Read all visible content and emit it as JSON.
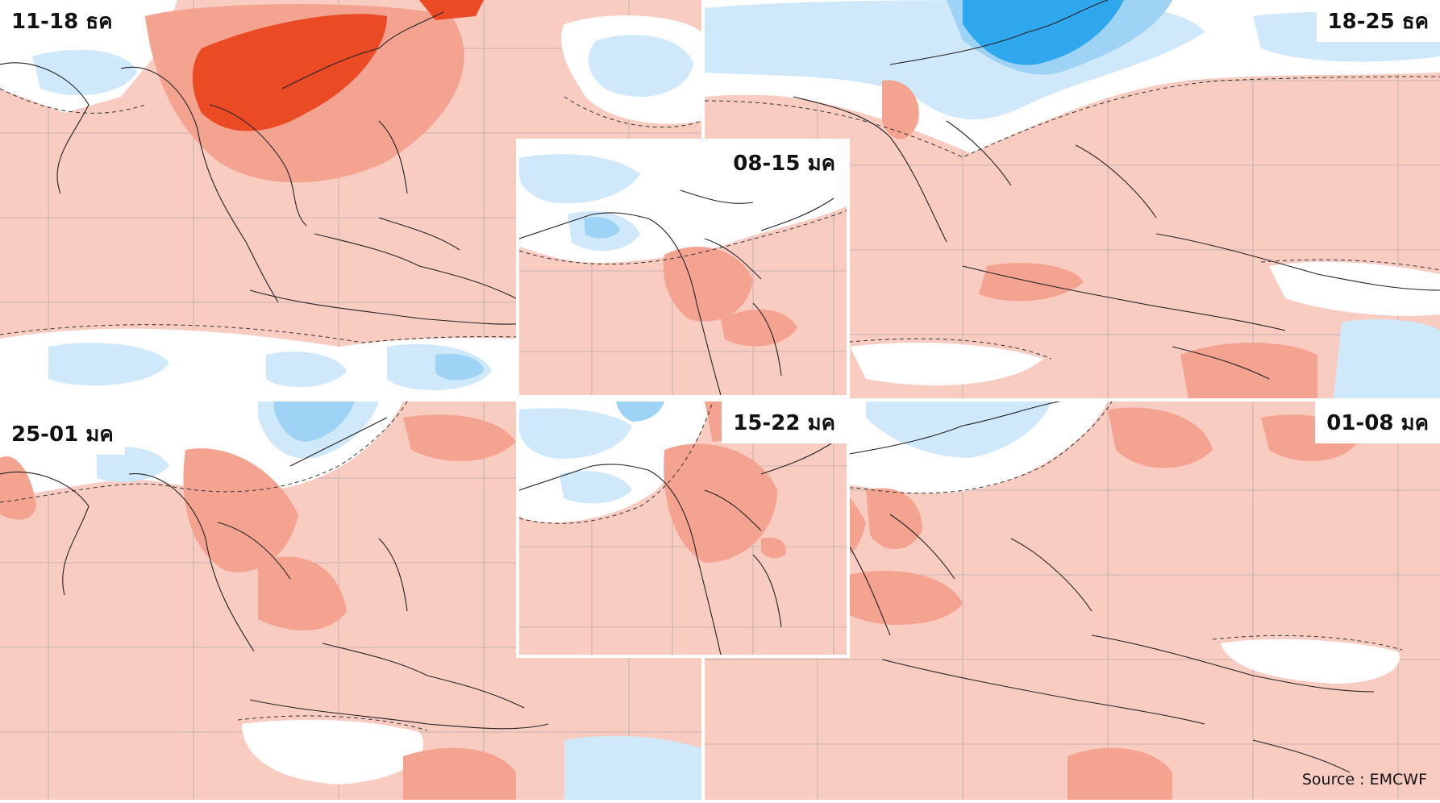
{
  "panels": [
    {
      "id": "p1",
      "label": "11-18 ธค"
    },
    {
      "id": "p2",
      "label": "18-25 ธค"
    },
    {
      "id": "p3",
      "label": "25-01 มค"
    },
    {
      "id": "p4",
      "label": "01-08 มค"
    },
    {
      "id": "p5",
      "label": "08-15 มค"
    },
    {
      "id": "p6",
      "label": "15-22 มค"
    }
  ],
  "source": "Source : EMCWF",
  "colors": {
    "background_anomaly": "#f9ccc2",
    "warm_1": "#f4a391",
    "warm_2": "#ef7a5e",
    "warm_3": "#ea4a24",
    "neutral": "#ffffff",
    "cool_1": "#cfe9fb",
    "cool_2": "#9fd3f5",
    "cool_3": "#2fa7ec",
    "coastline": "#222222",
    "grid": "#9a9a9a"
  }
}
